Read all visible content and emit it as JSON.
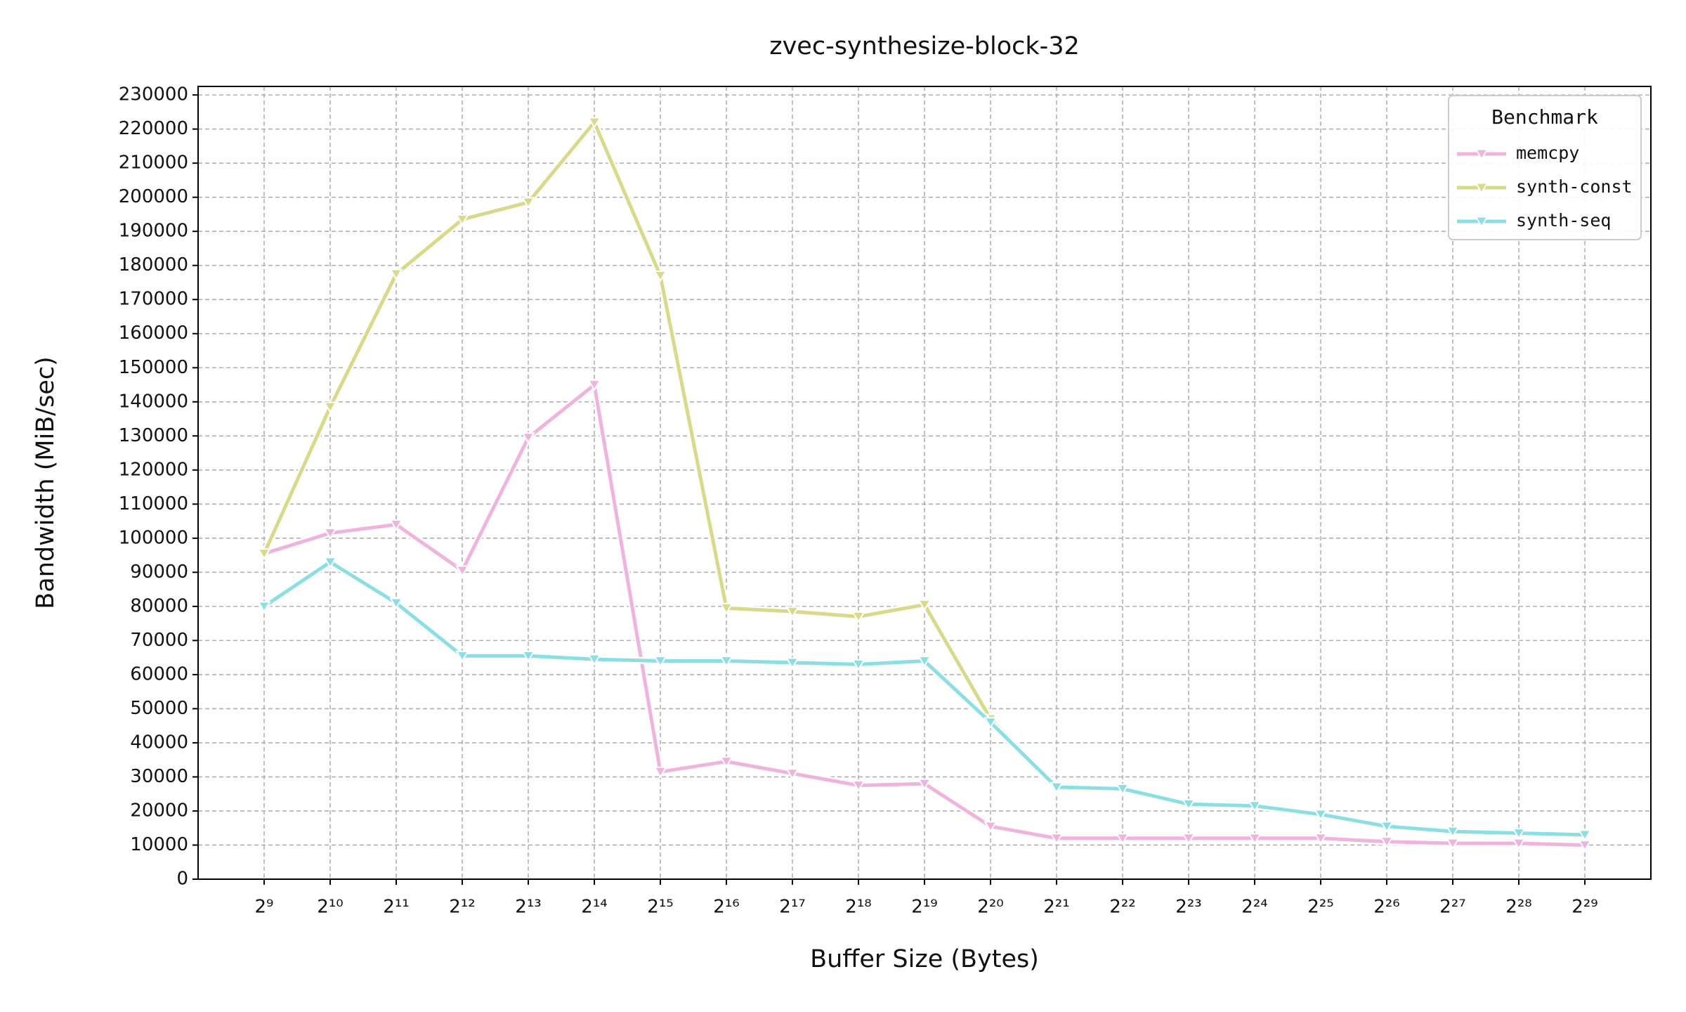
{
  "chart_data": {
    "type": "line",
    "title": "zvec-synthesize-block-32",
    "xlabel": "Buffer Size (Bytes)",
    "ylabel": "Bandwidth (MiB/sec)",
    "legend_title": "Benchmark",
    "legend": "upper right",
    "grid": true,
    "xscale": "log2",
    "x": [
      512,
      1024,
      2048,
      4096,
      8192,
      16384,
      32768,
      65536,
      131072,
      262144,
      524288,
      1048576,
      2097152,
      4194304,
      8388608,
      16777216,
      33554432,
      67108864,
      134217728,
      268435456,
      536870912
    ],
    "xlim": [
      256,
      1073741824
    ],
    "xticks": [
      {
        "value": 512,
        "label": "2⁹"
      },
      {
        "value": 1024,
        "label": "2¹⁰"
      },
      {
        "value": 2048,
        "label": "2¹¹"
      },
      {
        "value": 4096,
        "label": "2¹²"
      },
      {
        "value": 8192,
        "label": "2¹³"
      },
      {
        "value": 16384,
        "label": "2¹⁴"
      },
      {
        "value": 32768,
        "label": "2¹⁵"
      },
      {
        "value": 65536,
        "label": "2¹⁶"
      },
      {
        "value": 131072,
        "label": "2¹⁷"
      },
      {
        "value": 262144,
        "label": "2¹⁸"
      },
      {
        "value": 524288,
        "label": "2¹⁹"
      },
      {
        "value": 1048576,
        "label": "2²⁰"
      },
      {
        "value": 2097152,
        "label": "2²¹"
      },
      {
        "value": 4194304,
        "label": "2²²"
      },
      {
        "value": 8388608,
        "label": "2²³"
      },
      {
        "value": 16777216,
        "label": "2²⁴"
      },
      {
        "value": 33554432,
        "label": "2²⁵"
      },
      {
        "value": 67108864,
        "label": "2²⁶"
      },
      {
        "value": 134217728,
        "label": "2²⁷"
      },
      {
        "value": 268435456,
        "label": "2²⁸"
      },
      {
        "value": 536870912,
        "label": "2²⁹"
      }
    ],
    "ylim": [
      0,
      232500
    ],
    "yticks": [
      0,
      10000,
      20000,
      30000,
      40000,
      50000,
      60000,
      70000,
      80000,
      90000,
      100000,
      110000,
      120000,
      130000,
      140000,
      150000,
      160000,
      170000,
      180000,
      190000,
      200000,
      210000,
      220000,
      230000
    ],
    "series": [
      {
        "name": "memcpy",
        "color": "#f0b3de",
        "values": [
          95500,
          101500,
          104000,
          90500,
          129500,
          145000,
          31500,
          34500,
          31000,
          27500,
          28000,
          15500,
          12000,
          12000,
          12000,
          12000,
          12000,
          11000,
          10500,
          10500,
          10000
        ]
      },
      {
        "name": "synth-const",
        "color": "#d9d98a",
        "values": [
          95500,
          138500,
          177500,
          193500,
          198500,
          222000,
          177000,
          79500,
          78500,
          77000,
          80500,
          47000,
          27000,
          26500,
          22000,
          21500,
          19000,
          15500,
          14000,
          13500,
          13000
        ]
      },
      {
        "name": "synth-seq",
        "color": "#8adfe5",
        "values": [
          80000,
          93000,
          81000,
          65500,
          65500,
          64500,
          64000,
          64000,
          63500,
          63000,
          64000,
          46000,
          27000,
          26500,
          22000,
          21500,
          19000,
          15500,
          14000,
          13500,
          13000
        ]
      }
    ]
  }
}
